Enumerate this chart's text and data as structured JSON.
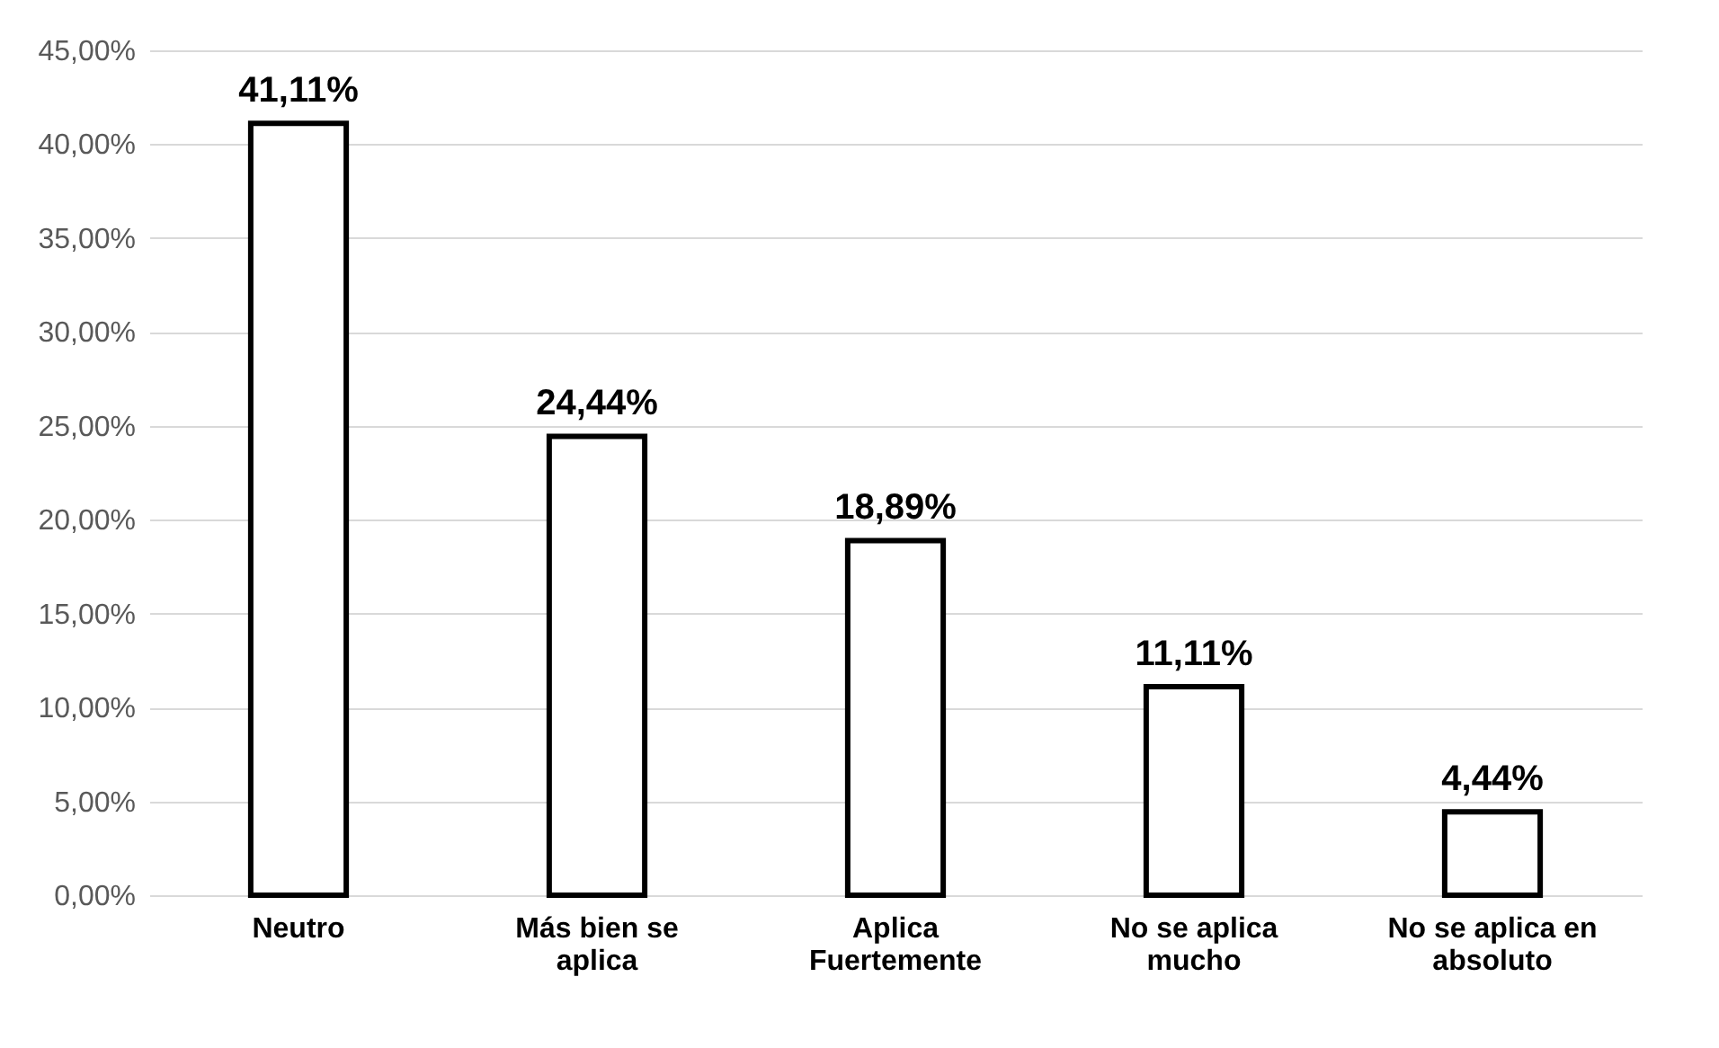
{
  "chart_data": {
    "type": "bar",
    "categories": [
      "Neutro",
      "Más bien se aplica",
      "Aplica Fuertemente",
      "No se aplica mucho",
      "No se aplica en absoluto"
    ],
    "values": [
      41.11,
      24.44,
      18.89,
      11.11,
      4.44
    ],
    "value_labels": [
      "41,11%",
      "24,44%",
      "18,89%",
      "11,11%",
      "4,44%"
    ],
    "color": "#ffffff",
    "ylim": [
      0,
      45
    ],
    "yticks": [
      {
        "value": 0,
        "label": "0,00%"
      },
      {
        "value": 5,
        "label": "5,00%"
      },
      {
        "value": 10,
        "label": "10,00%"
      },
      {
        "value": 15,
        "label": "15,00%"
      },
      {
        "value": 20,
        "label": "20,00%"
      },
      {
        "value": 25,
        "label": "25,00%"
      },
      {
        "value": 30,
        "label": "30,00%"
      },
      {
        "value": 35,
        "label": "35,00%"
      },
      {
        "value": 40,
        "label": "40,00%"
      },
      {
        "value": 45,
        "label": "45,00%"
      }
    ],
    "grid": "y"
  }
}
